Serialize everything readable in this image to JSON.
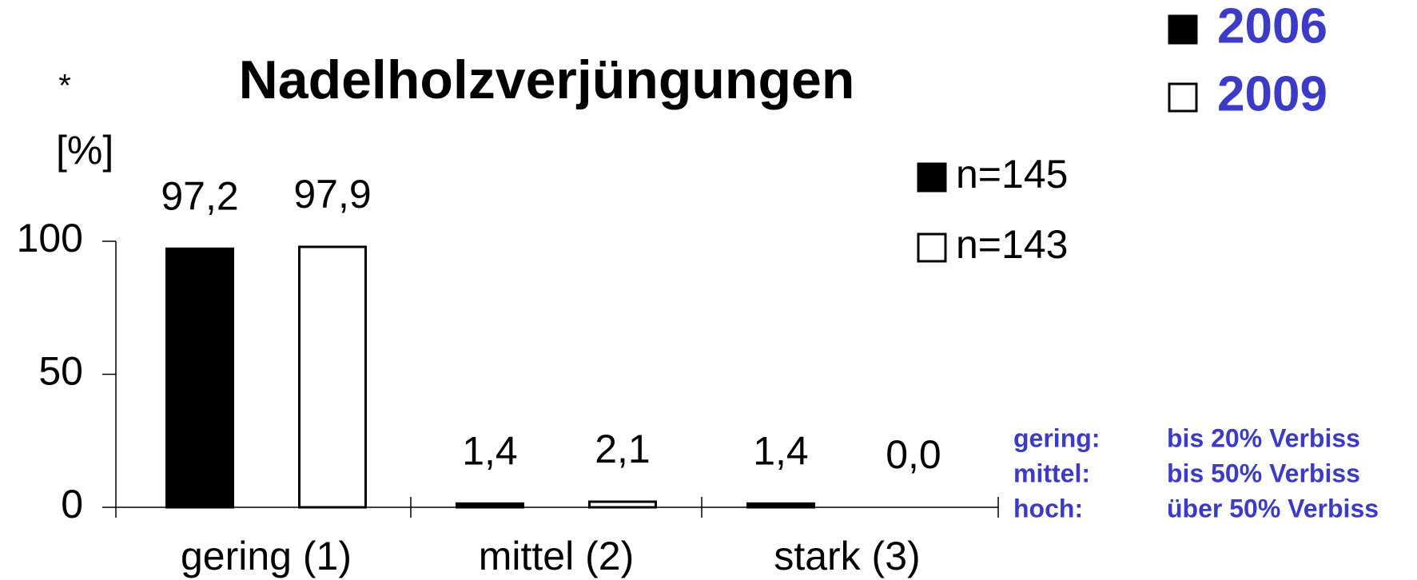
{
  "chart_data": {
    "type": "bar",
    "title": "Nadelholzverjüngungen",
    "marker": "*",
    "y_label": "[%]",
    "categories": [
      "gering (1)",
      "mittel (2)",
      "stark (3)"
    ],
    "series": [
      {
        "name": "2006",
        "color": "#000000",
        "values": [
          97.2,
          1.4,
          1.4
        ],
        "value_labels": [
          "97,2",
          "1,4",
          "1,4"
        ],
        "sample_size": "n=145"
      },
      {
        "name": "2009",
        "color": "#ffffff",
        "values": [
          97.9,
          2.1,
          0.0
        ],
        "value_labels": [
          "97,9",
          "2,1",
          "0,0"
        ],
        "sample_size": "n=143"
      }
    ],
    "ylim": [
      0,
      100
    ],
    "yticks": [
      0,
      50,
      100
    ],
    "legend": "top-right",
    "notes": [
      [
        "gering:",
        "bis 20% Verbiss"
      ],
      [
        "mittel:",
        "bis 50% Verbiss"
      ],
      [
        "hoch:",
        "über 50% Verbiss"
      ]
    ]
  }
}
